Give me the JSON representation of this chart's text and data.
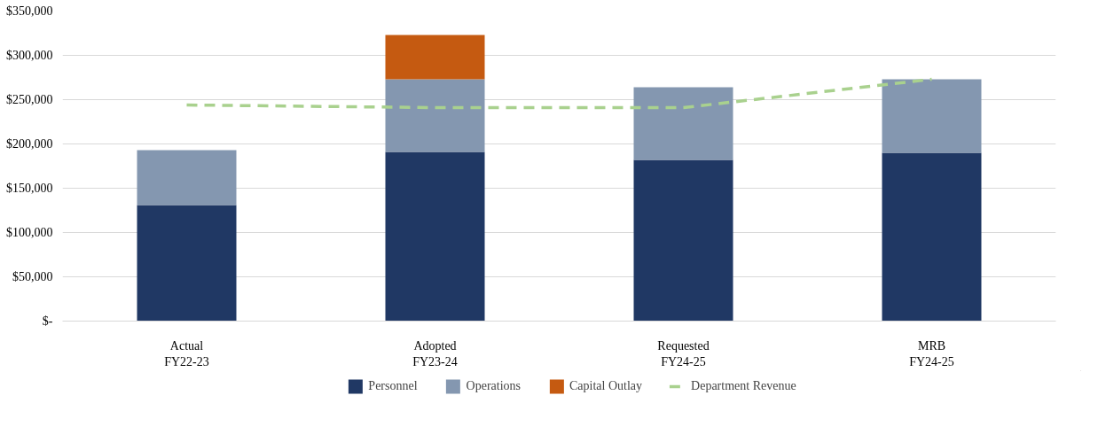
{
  "chart_data": {
    "type": "bar",
    "stacked": true,
    "categories": [
      "Actual\nFY22-23",
      "Adopted\nFY23-24",
      "Requested\nFY24-25",
      "MRB\nFY24-25"
    ],
    "series": [
      {
        "name": "Personnel",
        "color": "#203864",
        "values": [
          131000,
          191000,
          182000,
          190000
        ]
      },
      {
        "name": "Operations",
        "color": "#8497b0",
        "values": [
          62000,
          82000,
          82000,
          83000
        ]
      },
      {
        "name": "Capital Outlay",
        "color": "#c55a11",
        "values": [
          null,
          50000,
          null,
          null
        ]
      },
      {
        "name": "Department Revenue",
        "type": "line",
        "line_style": "dashed",
        "color": "#a9d18e",
        "values": [
          244000,
          241000,
          241000,
          273000
        ]
      }
    ],
    "ylim": [
      0,
      350000
    ],
    "yticks": [
      {
        "value": 0,
        "label": "$-"
      },
      {
        "value": 50000,
        "label": "$50,000"
      },
      {
        "value": 100000,
        "label": "$100,000"
      },
      {
        "value": 150000,
        "label": "$150,000"
      },
      {
        "value": 200000,
        "label": "$200,000"
      },
      {
        "value": 250000,
        "label": "$250,000"
      },
      {
        "value": 300000,
        "label": "$300,000"
      },
      {
        "value": 350000,
        "label": "$350,000"
      }
    ],
    "grid": "y",
    "legend": "bottom"
  }
}
